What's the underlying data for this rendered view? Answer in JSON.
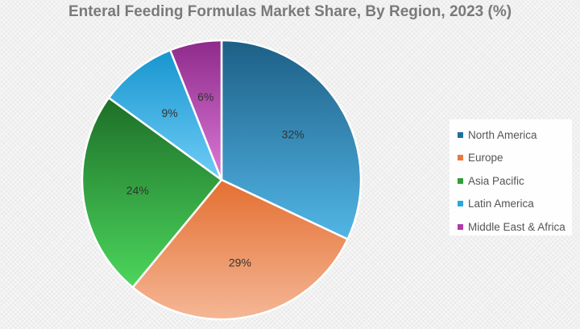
{
  "chart_data": {
    "type": "pie",
    "title": "Enteral Feeding Formulas Market Share, By Region, 2023 (%)",
    "categories": [
      "North America",
      "Europe",
      "Asia Pacific",
      "Latin America",
      "Middle East & Africa"
    ],
    "values": [
      32,
      29,
      24,
      9,
      6
    ],
    "value_labels": [
      "32%",
      "29%",
      "24%",
      "9%",
      "6%"
    ],
    "colors": [
      {
        "light": "#52b6e6",
        "dark": "#1d5f86"
      },
      {
        "light": "#f5b796",
        "dark": "#e46f31"
      },
      {
        "light": "#4cd65c",
        "dark": "#1d6f28"
      },
      {
        "light": "#6fcdf6",
        "dark": "#1795cf"
      },
      {
        "light": "#dc7ad8",
        "dark": "#8e2a8a"
      }
    ],
    "legend_colors": [
      "#1f6f9d",
      "#e9793f",
      "#2e9f3a",
      "#2aa8de",
      "#b03aa9"
    ],
    "legend_position": "right",
    "start_angle_deg": 0,
    "direction": "clockwise"
  }
}
